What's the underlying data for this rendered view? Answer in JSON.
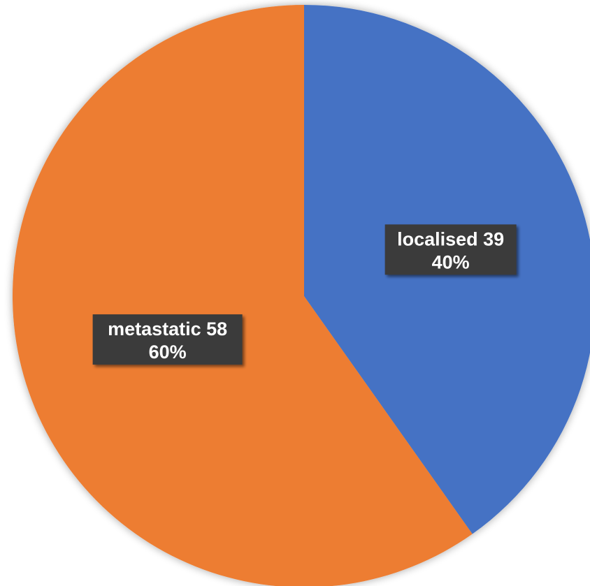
{
  "chart_data": {
    "type": "pie",
    "slices": [
      {
        "label": "localised",
        "value": 39,
        "percent": "40%",
        "color": "#4472C4"
      },
      {
        "label": "metastatic",
        "value": 58,
        "percent": "60%",
        "color": "#ED7D31"
      }
    ],
    "start_angle": "12 o'clock",
    "direction": "clockwise",
    "data_labels": "category value and percentage, dark label boxes",
    "legend": "none",
    "title": ""
  }
}
